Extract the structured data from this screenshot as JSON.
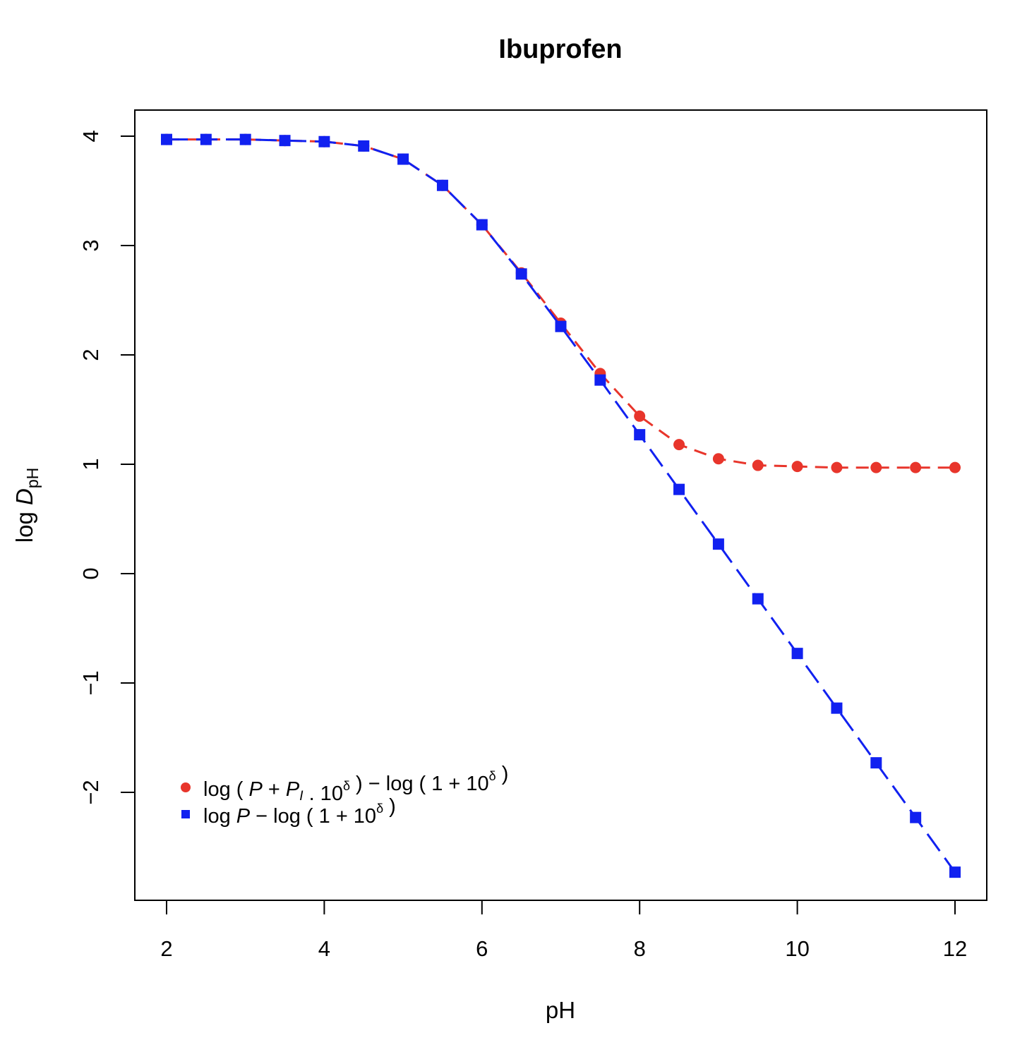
{
  "chart_data": {
    "type": "scatter",
    "title": "Ibuprofen",
    "xlabel": "pH",
    "ylabel": {
      "prefix": "log ",
      "var": "D",
      "sub": "pH"
    },
    "xlim": [
      2,
      12
    ],
    "ylim": [
      -2.75,
      4
    ],
    "xticks": [
      "2",
      "4",
      "6",
      "8",
      "10",
      "12"
    ],
    "yticks": [
      "−2",
      "−1",
      "0",
      "1",
      "2",
      "3",
      "4"
    ],
    "grid": false,
    "legend_position": "bottom-left",
    "x": [
      2,
      2.5,
      3,
      3.5,
      4,
      4.5,
      5,
      5.5,
      6,
      6.5,
      7,
      7.5,
      8,
      8.5,
      9,
      9.5,
      10,
      10.5,
      11,
      11.5,
      12
    ],
    "series": [
      {
        "name": "log ( P + P_I . 10^δ ) − log ( 1 + 10^δ )",
        "legend_parts": [
          {
            "t": "log ( "
          },
          {
            "t": "P",
            "i": true
          },
          {
            "t": " + "
          },
          {
            "t": "P",
            "i": true
          },
          {
            "t": "I",
            "i": true,
            "sub": true
          },
          {
            "t": " . 10"
          },
          {
            "t": "δ",
            "sup": true
          },
          {
            "t": " ) − log ( 1 + 10"
          },
          {
            "t": "δ",
            "sup": true
          },
          {
            "t": " )"
          }
        ],
        "marker": "circle",
        "color": "#e8352b",
        "values": [
          3.97,
          3.97,
          3.97,
          3.96,
          3.95,
          3.91,
          3.79,
          3.55,
          3.19,
          2.75,
          2.29,
          1.83,
          1.44,
          1.18,
          1.05,
          0.99,
          0.98,
          0.97,
          0.97,
          0.97,
          0.97
        ]
      },
      {
        "name": "log P − log ( 1 + 10^δ )",
        "legend_parts": [
          {
            "t": "log "
          },
          {
            "t": "P",
            "i": true
          },
          {
            "t": " − log ( 1 + 10"
          },
          {
            "t": "δ",
            "sup": true
          },
          {
            "t": " )"
          }
        ],
        "marker": "square",
        "color": "#1121f0",
        "values": [
          3.97,
          3.97,
          3.97,
          3.96,
          3.95,
          3.91,
          3.79,
          3.55,
          3.19,
          2.74,
          2.26,
          1.77,
          1.27,
          0.77,
          0.27,
          -0.23,
          -0.73,
          -1.23,
          -1.73,
          -2.23,
          -2.73
        ]
      }
    ]
  }
}
